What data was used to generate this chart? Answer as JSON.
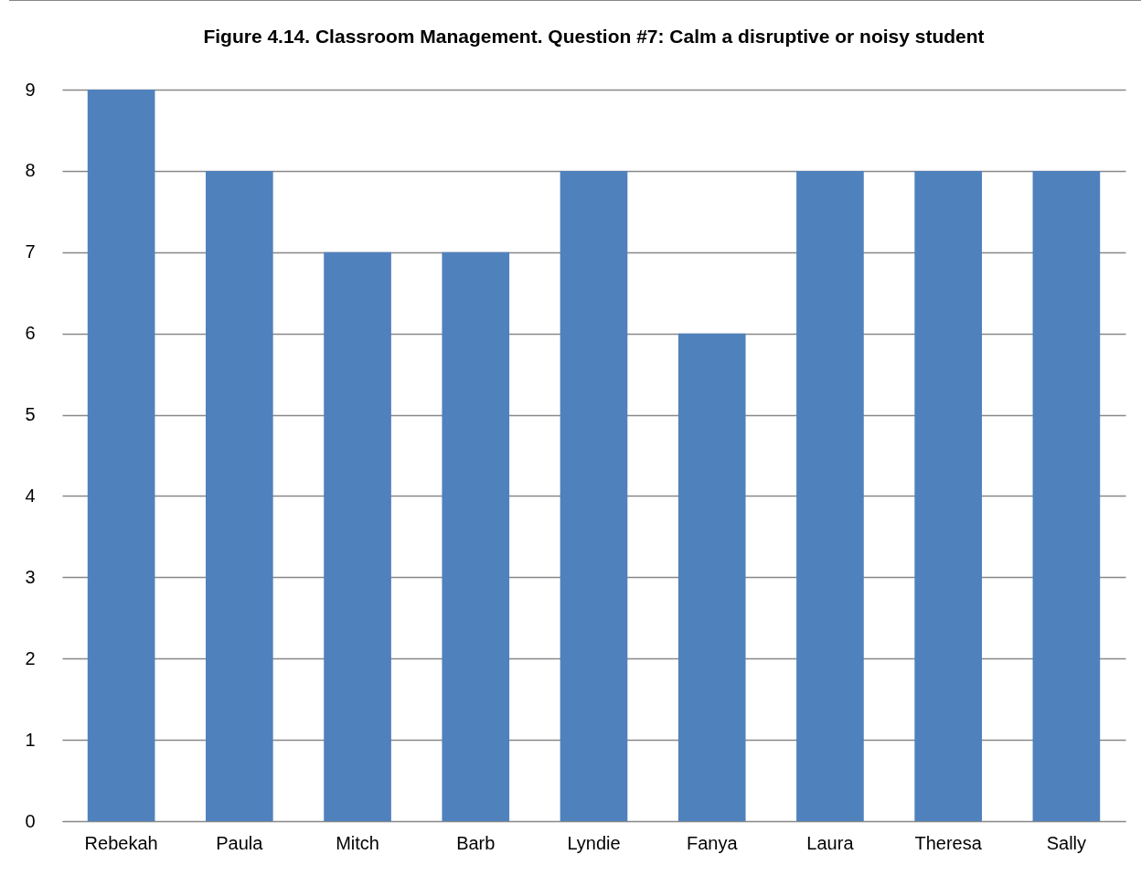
{
  "chart_data": {
    "type": "bar",
    "title": "Figure 4.14.  Classroom Management.  Question #7: Calm a disruptive or noisy student",
    "categories": [
      "Rebekah",
      "Paula",
      "Mitch",
      "Barb",
      "Lyndie",
      "Fanya",
      "Laura",
      "Theresa",
      "Sally"
    ],
    "values": [
      9,
      8,
      7,
      7,
      8,
      6,
      8,
      8,
      8
    ],
    "color": "#4f81bd",
    "ylim": [
      0,
      9
    ],
    "yticks": [
      0,
      1,
      2,
      3,
      4,
      5,
      6,
      7,
      8,
      9
    ],
    "grid": "y"
  }
}
